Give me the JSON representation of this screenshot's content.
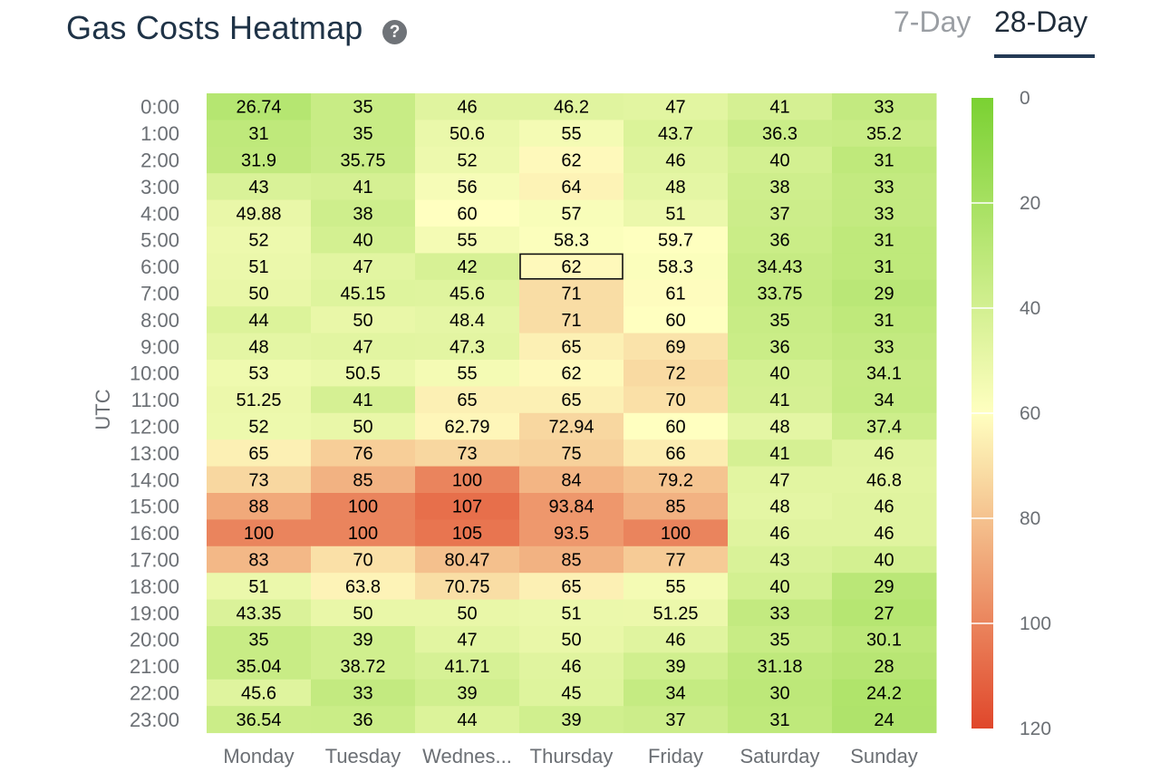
{
  "header": {
    "title": "Gas Costs Heatmap",
    "help_icon": "?",
    "tabs": [
      {
        "label": "7-Day",
        "active": false
      },
      {
        "label": "28-Day",
        "active": true
      }
    ]
  },
  "colors": {
    "low": "#7ad132",
    "mid": "#ffffc0",
    "high": "#e0472b",
    "title": "#1f3347",
    "accent_underline": "#243a55"
  },
  "chart_data": {
    "type": "heatmap",
    "title": "",
    "xlabel": "",
    "ylabel": "UTC",
    "x_categories": [
      "Monday",
      "Tuesday",
      "Wednes...",
      "Thursday",
      "Friday",
      "Saturday",
      "Sunday"
    ],
    "y_categories": [
      "0:00",
      "1:00",
      "2:00",
      "3:00",
      "4:00",
      "5:00",
      "6:00",
      "7:00",
      "8:00",
      "9:00",
      "10:00",
      "11:00",
      "12:00",
      "13:00",
      "14:00",
      "15:00",
      "16:00",
      "17:00",
      "18:00",
      "19:00",
      "20:00",
      "21:00",
      "22:00",
      "23:00"
    ],
    "values": [
      [
        "26.74",
        "35",
        "46",
        "46.2",
        "47",
        "41",
        "33"
      ],
      [
        "31",
        "35",
        "50.6",
        "55",
        "43.7",
        "36.3",
        "35.2"
      ],
      [
        "31.9",
        "35.75",
        "52",
        "62",
        "46",
        "40",
        "31"
      ],
      [
        "43",
        "41",
        "56",
        "64",
        "48",
        "38",
        "33"
      ],
      [
        "49.88",
        "38",
        "60",
        "57",
        "51",
        "37",
        "33"
      ],
      [
        "52",
        "40",
        "55",
        "58.3",
        "59.7",
        "36",
        "31"
      ],
      [
        "51",
        "47",
        "42",
        "62",
        "58.3",
        "34.43",
        "31"
      ],
      [
        "50",
        "45.15",
        "45.6",
        "71",
        "61",
        "33.75",
        "29"
      ],
      [
        "44",
        "50",
        "48.4",
        "71",
        "60",
        "35",
        "31"
      ],
      [
        "48",
        "47",
        "47.3",
        "65",
        "69",
        "36",
        "33"
      ],
      [
        "53",
        "50.5",
        "55",
        "62",
        "72",
        "40",
        "34.1"
      ],
      [
        "51.25",
        "41",
        "65",
        "65",
        "70",
        "41",
        "34"
      ],
      [
        "52",
        "50",
        "62.79",
        "72.94",
        "60",
        "48",
        "37.4"
      ],
      [
        "65",
        "76",
        "73",
        "75",
        "66",
        "41",
        "46"
      ],
      [
        "73",
        "85",
        "100",
        "84",
        "79.2",
        "47",
        "46.8"
      ],
      [
        "88",
        "100",
        "107",
        "93.84",
        "85",
        "48",
        "46"
      ],
      [
        "100",
        "100",
        "105",
        "93.5",
        "100",
        "46",
        "46"
      ],
      [
        "83",
        "70",
        "80.47",
        "85",
        "77",
        "43",
        "40"
      ],
      [
        "51",
        "63.8",
        "70.75",
        "65",
        "55",
        "40",
        "29"
      ],
      [
        "43.35",
        "50",
        "50",
        "51",
        "51.25",
        "33",
        "27"
      ],
      [
        "35",
        "39",
        "47",
        "50",
        "46",
        "35",
        "30.1"
      ],
      [
        "35.04",
        "38.72",
        "41.71",
        "46",
        "39",
        "31.18",
        "28"
      ],
      [
        "45.6",
        "33",
        "39",
        "45",
        "34",
        "30",
        "24.2"
      ],
      [
        "36.54",
        "36",
        "44",
        "39",
        "37",
        "31",
        "24"
      ]
    ],
    "highlighted_cell": {
      "row": "6:00",
      "column": "Thursday"
    },
    "color_scale": {
      "min": 0,
      "max": 120,
      "ticks": [
        "0",
        "20",
        "40",
        "60",
        "80",
        "100",
        "120"
      ]
    }
  }
}
